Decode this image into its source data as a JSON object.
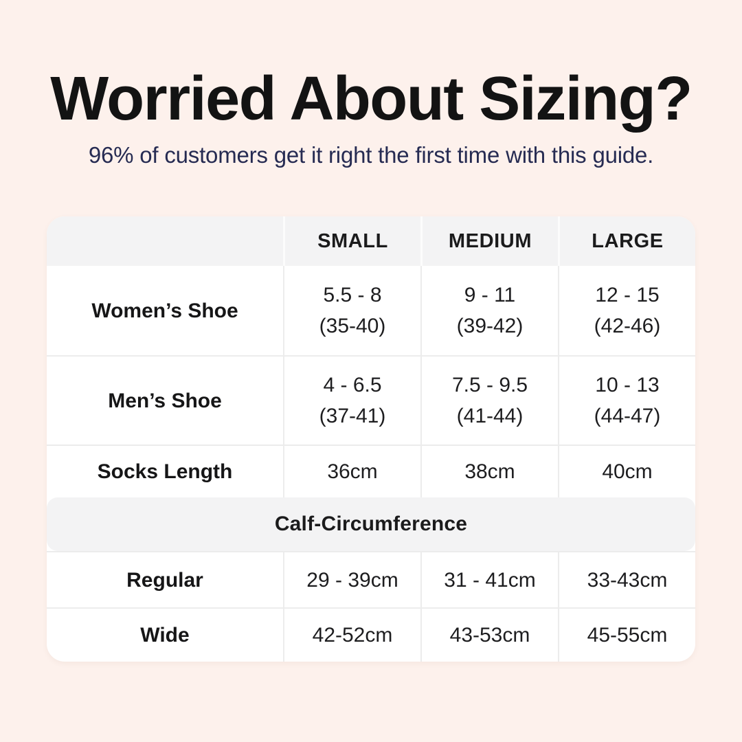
{
  "page": {
    "title": "Worried About Sizing?",
    "subtitle": "96% of customers get it right the first time with this guide."
  },
  "table": {
    "header": {
      "c0": "",
      "c1": "SMALL",
      "c2": "MEDIUM",
      "c3": "LARGE"
    },
    "rows": [
      {
        "label": "Women’s Shoe",
        "cells": [
          {
            "l1": "5.5 - 8",
            "l2": "(35-40)"
          },
          {
            "l1": "9 - 11",
            "l2": "(39-42)"
          },
          {
            "l1": "12 - 15",
            "l2": "(42-46)"
          }
        ]
      },
      {
        "label": "Men’s Shoe",
        "cells": [
          {
            "l1": "4 - 6.5",
            "l2": "(37-41)"
          },
          {
            "l1": "7.5 - 9.5",
            "l2": "(41-44)"
          },
          {
            "l1": "10 - 13",
            "l2": "(44-47)"
          }
        ]
      },
      {
        "label": "Socks Length",
        "cells": [
          {
            "l1": "36cm"
          },
          {
            "l1": "38cm"
          },
          {
            "l1": "40cm"
          }
        ]
      }
    ],
    "section": {
      "title": "Calf-Circumference"
    },
    "section_rows": [
      {
        "label": "Regular",
        "cells": [
          {
            "l1": "29 - 39cm"
          },
          {
            "l1": "31 - 41cm"
          },
          {
            "l1": "33-43cm"
          }
        ]
      },
      {
        "label": "Wide",
        "cells": [
          {
            "l1": "42-52cm"
          },
          {
            "l1": "43-53cm"
          },
          {
            "l1": "45-55cm"
          }
        ]
      }
    ]
  },
  "colors": {
    "background": "#fdf1ec",
    "card": "#ffffff",
    "band_gray": "#f3f3f4",
    "border": "#ececec",
    "title_text": "#131313",
    "subtitle_text": "#262b52",
    "table_text": "#1d1d1f"
  },
  "chart_data": {
    "type": "table",
    "title": "Worried About Sizing?",
    "subtitle": "96% of customers get it right the first time with this guide.",
    "columns": [
      "",
      "SMALL",
      "MEDIUM",
      "LARGE"
    ],
    "rows": [
      [
        "Women’s Shoe",
        "5.5 - 8 (35-40)",
        "9 - 11 (39-42)",
        "12 - 15 (42-46)"
      ],
      [
        "Men’s Shoe",
        "4 - 6.5 (37-41)",
        "7.5 - 9.5 (41-44)",
        "10 - 13 (44-47)"
      ],
      [
        "Socks Length",
        "36cm",
        "38cm",
        "40cm"
      ],
      [
        "Calf-Circumference",
        "",
        "",
        ""
      ],
      [
        "Regular",
        "29 - 39cm",
        "31 - 41cm",
        "33-43cm"
      ],
      [
        "Wide",
        "42-52cm",
        "43-53cm",
        "45-55cm"
      ]
    ],
    "layout": {
      "grid": true,
      "header_band": true,
      "section_band_row_index": 3
    }
  }
}
